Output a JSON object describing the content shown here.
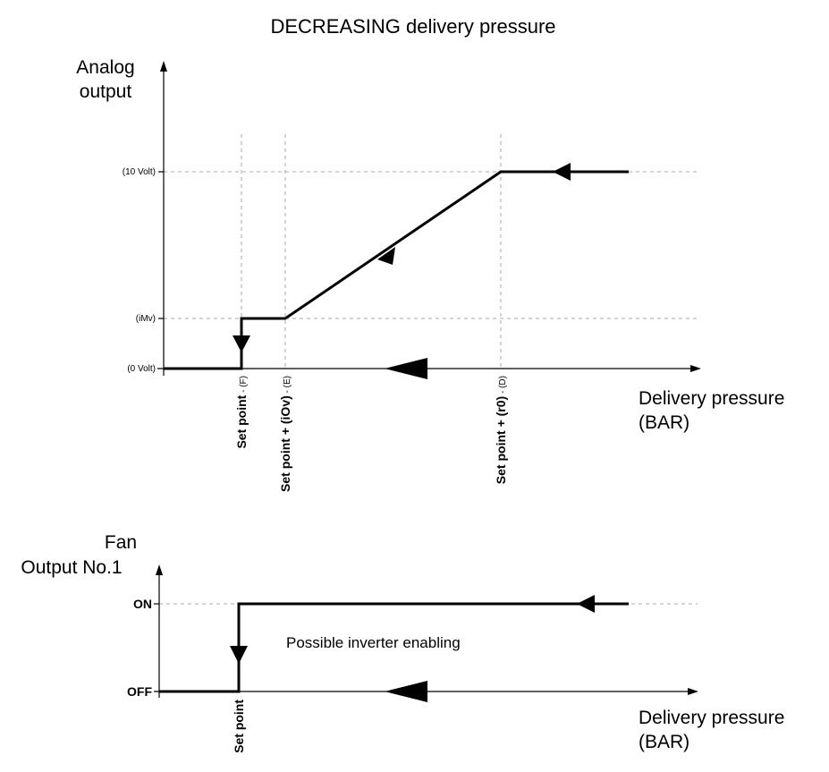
{
  "title": "DECREASING delivery pressure",
  "top_chart": {
    "y_axis_label": [
      "Analog",
      "output"
    ],
    "y_levels": [
      "(10 Volt)",
      "(iMv)",
      "(0 Volt)"
    ],
    "x_axis_label": [
      "Delivery pressure",
      "(BAR)"
    ],
    "x_markers": [
      {
        "label": "Set point",
        "tag": " - (F)"
      },
      {
        "label": "Set point + (iOv)",
        "tag": " - (E)"
      },
      {
        "label": "Set point + (r0)",
        "tag": " - (D)"
      }
    ]
  },
  "bottom_chart": {
    "y_axis_label": [
      "Fan",
      "Output No.1"
    ],
    "y_levels": [
      "ON",
      "OFF"
    ],
    "annotation": "Possible inverter enabling",
    "x_axis_label": [
      "Delivery pressure",
      "(BAR)"
    ],
    "x_marker": "Set point"
  }
}
